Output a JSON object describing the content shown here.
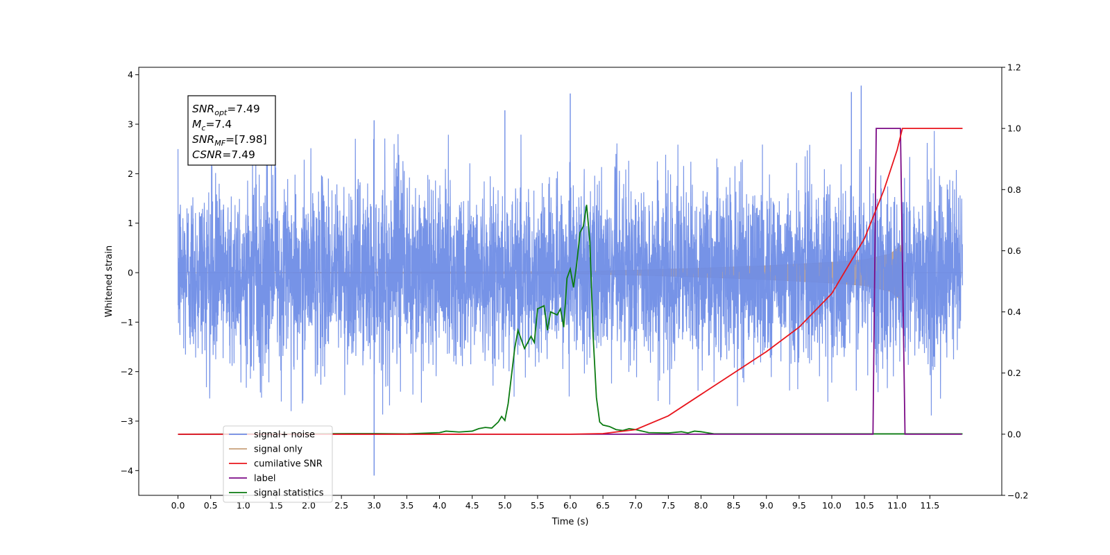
{
  "chart_data": {
    "type": "line",
    "xlabel": "Time (s)",
    "ylabel_left": "Whitened strain",
    "xlim": [
      -0.6,
      12.6
    ],
    "ylim_left": [
      -4.5,
      4.15
    ],
    "ylim_right": [
      -0.2,
      1.2
    ],
    "x_ticks": [
      0.0,
      0.5,
      1.0,
      1.5,
      2.0,
      2.5,
      3.0,
      3.5,
      4.0,
      4.5,
      5.0,
      5.5,
      6.0,
      6.5,
      7.0,
      7.5,
      8.0,
      8.5,
      9.0,
      9.5,
      10.0,
      10.5,
      11.0,
      11.5
    ],
    "x_tick_labels": [
      "0.0",
      "0.5",
      "1.0",
      "1.5",
      "2.0",
      "2.5",
      "3.0",
      "3.5",
      "4.0",
      "4.5",
      "5.0",
      "5.5",
      "6.0",
      "6.5",
      "7.0",
      "7.5",
      "8.0",
      "8.5",
      "9.0",
      "9.5",
      "10.0",
      "10.5",
      "11.0",
      "11.5"
    ],
    "y_ticks_left": [
      -4,
      -3,
      -2,
      -1,
      0,
      1,
      2,
      3,
      4
    ],
    "y_tick_labels_left": [
      "−4",
      "−3",
      "−2",
      "−1",
      "0",
      "1",
      "2",
      "3",
      "4"
    ],
    "y_ticks_right": [
      -0.2,
      0.0,
      0.2,
      0.4,
      0.6,
      0.8,
      1.0,
      1.2
    ],
    "y_tick_labels_right": [
      "−0.2",
      "0.0",
      "0.2",
      "0.4",
      "0.6",
      "0.8",
      "1.0",
      "1.2"
    ],
    "grid": false,
    "legend_position": "lower-left",
    "annotation": {
      "lines": [
        {
          "main": "SNR",
          "sub": "opt",
          "rest": "=7.49"
        },
        {
          "main": "M",
          "sub": "c",
          "rest": "=7.4"
        },
        {
          "main": "SNR",
          "sub": "MF",
          "rest": "=[7.98]"
        },
        {
          "main": "CSNR",
          "sub": "",
          "rest": "=7.49"
        }
      ]
    },
    "series": [
      {
        "name": "signal+ noise",
        "axis": "left",
        "color": "#6f8de6",
        "description": "white noise, std about 0.9, sampled 0.0 to 12.0 s, occasional spikes up to 3.8 and down to -4.1",
        "x_range": [
          0.0,
          12.0
        ],
        "std": 0.9,
        "notable_points": [
          {
            "x": 3.0,
            "y": -4.1
          },
          {
            "x": 10.45,
            "y": 3.78
          },
          {
            "x": 6.0,
            "y": 3.62
          },
          {
            "x": 10.3,
            "y": 3.65
          },
          {
            "x": 5.0,
            "y": 3.28
          },
          {
            "x": 3.0,
            "y": 3.08
          }
        ]
      },
      {
        "name": "signal only",
        "axis": "left",
        "color": "#c8a07a",
        "description": "chirp with amplitude envelope growing from ~0 at 6.0 s to ~0.55 at 11.1 s, then ~0",
        "envelope": {
          "x": [
            0.0,
            6.0,
            7.0,
            8.0,
            9.0,
            10.0,
            10.5,
            10.9,
            11.05,
            11.1,
            12.0
          ],
          "amp": [
            0.0,
            0.02,
            0.05,
            0.09,
            0.14,
            0.21,
            0.26,
            0.38,
            0.55,
            0.0,
            0.0
          ]
        }
      },
      {
        "name": "cumilative SNR",
        "axis": "right",
        "color": "#e8141c",
        "x": [
          0.0,
          6.0,
          6.5,
          7.0,
          7.5,
          8.0,
          8.5,
          9.0,
          9.5,
          10.0,
          10.5,
          10.8,
          11.0,
          11.08,
          12.0
        ],
        "y": [
          0.0,
          0.0,
          0.002,
          0.015,
          0.06,
          0.13,
          0.2,
          0.27,
          0.35,
          0.46,
          0.64,
          0.8,
          0.93,
          1.0,
          1.0
        ]
      },
      {
        "name": "label",
        "axis": "right",
        "color": "#7b0a86",
        "x": [
          0.0,
          10.63,
          10.68,
          11.05,
          11.12,
          11.99
        ],
        "y": [
          0.0,
          0.0,
          1.0,
          1.0,
          0.0,
          0.0
        ]
      },
      {
        "name": "signal statistics",
        "axis": "right",
        "color": "#0a7a10",
        "x": [
          0.0,
          3.0,
          3.5,
          4.0,
          4.1,
          4.3,
          4.5,
          4.6,
          4.7,
          4.8,
          4.9,
          4.95,
          5.0,
          5.05,
          5.1,
          5.15,
          5.2,
          5.3,
          5.4,
          5.45,
          5.5,
          5.6,
          5.65,
          5.7,
          5.8,
          5.85,
          5.9,
          5.95,
          6.0,
          6.05,
          6.1,
          6.15,
          6.2,
          6.25,
          6.3,
          6.35,
          6.4,
          6.45,
          6.5,
          6.6,
          6.7,
          6.8,
          6.9,
          7.0,
          7.2,
          7.5,
          7.7,
          7.8,
          7.9,
          8.0,
          8.2,
          12.0
        ],
        "y": [
          0.0,
          0.002,
          0.001,
          0.005,
          0.01,
          0.007,
          0.01,
          0.018,
          0.022,
          0.02,
          0.04,
          0.058,
          0.045,
          0.1,
          0.19,
          0.28,
          0.34,
          0.28,
          0.32,
          0.3,
          0.41,
          0.42,
          0.34,
          0.4,
          0.39,
          0.41,
          0.35,
          0.51,
          0.54,
          0.48,
          0.56,
          0.66,
          0.68,
          0.75,
          0.63,
          0.32,
          0.12,
          0.04,
          0.03,
          0.025,
          0.015,
          0.012,
          0.018,
          0.015,
          0.005,
          0.004,
          0.008,
          0.004,
          0.01,
          0.008,
          0.001,
          0.001
        ]
      }
    ]
  }
}
